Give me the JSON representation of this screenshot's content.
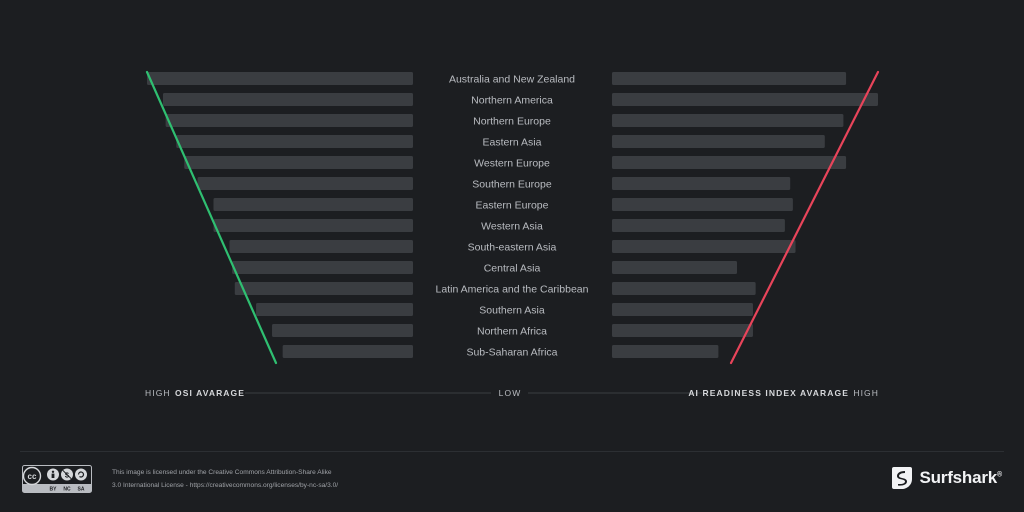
{
  "chart_data": {
    "type": "bar",
    "categories": [
      "Australia and New Zealand",
      "Northern America",
      "Northern Europe",
      "Eastern Asia",
      "Western Europe",
      "Southern Europe",
      "Eastern Europe",
      "Western Asia",
      "South-eastern Asia",
      "Central Asia",
      "Latin America and the Caribbean",
      "Southern Asia",
      "Northern Africa",
      "Sub-Saharan Africa"
    ],
    "series": [
      {
        "name": "OSI AVARAGE",
        "side": "left",
        "values": [
          1.0,
          0.94,
          0.93,
          0.89,
          0.86,
          0.81,
          0.75,
          0.75,
          0.69,
          0.68,
          0.67,
          0.59,
          0.53,
          0.49
        ]
      },
      {
        "name": "AI READINESS INDEX AVARAGE",
        "side": "right",
        "values": [
          0.88,
          1.0,
          0.87,
          0.8,
          0.88,
          0.67,
          0.68,
          0.65,
          0.69,
          0.47,
          0.54,
          0.53,
          0.53,
          0.4
        ]
      }
    ],
    "axis": {
      "left_high": "HIGH",
      "left_title": "OSI AVARAGE",
      "center_low": "LOW",
      "right_title": "AI READINESS INDEX AVARAGE",
      "right_high": "HIGH"
    },
    "colors": {
      "bar": "#3a3d41",
      "left_trend": "#2fbf71",
      "right_trend": "#e8445a",
      "background": "#1c1e21"
    },
    "grid": false,
    "legend": "none"
  },
  "footer": {
    "cc_badge": {
      "cc": "cc",
      "by": "BY",
      "nc": "NC",
      "sa": "SA"
    },
    "license_line1": "This image is licensed under the Creative Commons Attribution-Share Alike",
    "license_line2": "3.0 International License - https://creativecommons.org/licenses/by-nc-sa/3.0/",
    "brand": "Surfshark",
    "brand_mark": "®",
    "brand_icon": "surfshark-logo-icon"
  }
}
